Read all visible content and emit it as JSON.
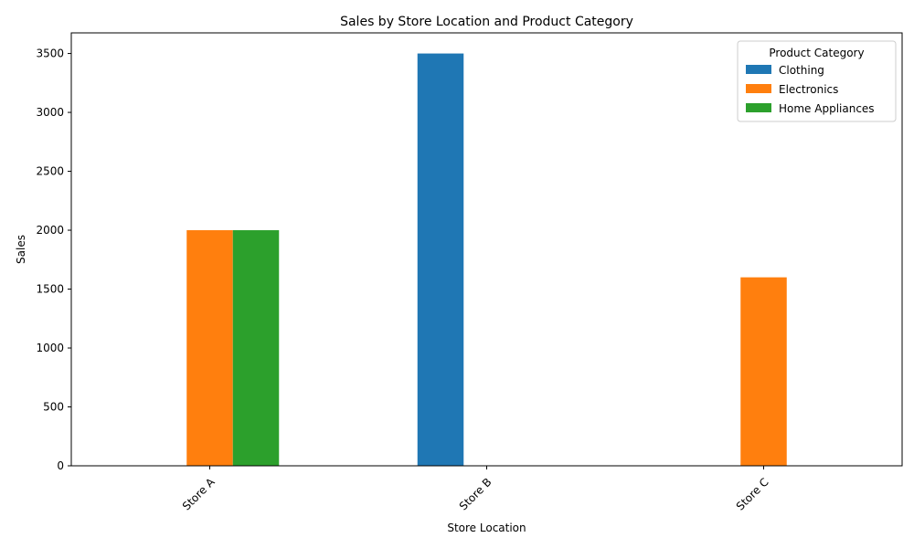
{
  "chart_data": {
    "type": "bar",
    "title": "Sales by Store Location and Product Category",
    "xlabel": "Store Location",
    "ylabel": "Sales",
    "categories": [
      "Store A",
      "Store B",
      "Store C"
    ],
    "series": [
      {
        "name": "Clothing",
        "color": "#1f77b4",
        "values": [
          0,
          3500,
          0
        ]
      },
      {
        "name": "Electronics",
        "color": "#ff7f0e",
        "values": [
          2000,
          0,
          1600
        ]
      },
      {
        "name": "Home Appliances",
        "color": "#2ca02c",
        "values": [
          2000,
          0,
          0
        ]
      }
    ],
    "ylim": [
      0,
      3675
    ],
    "yticks": [
      0,
      500,
      1000,
      1500,
      2000,
      2500,
      3000,
      3500
    ],
    "legend": {
      "title": "Product Category",
      "placement": "top-right"
    },
    "grid": false,
    "xtick_rotation": 45
  }
}
